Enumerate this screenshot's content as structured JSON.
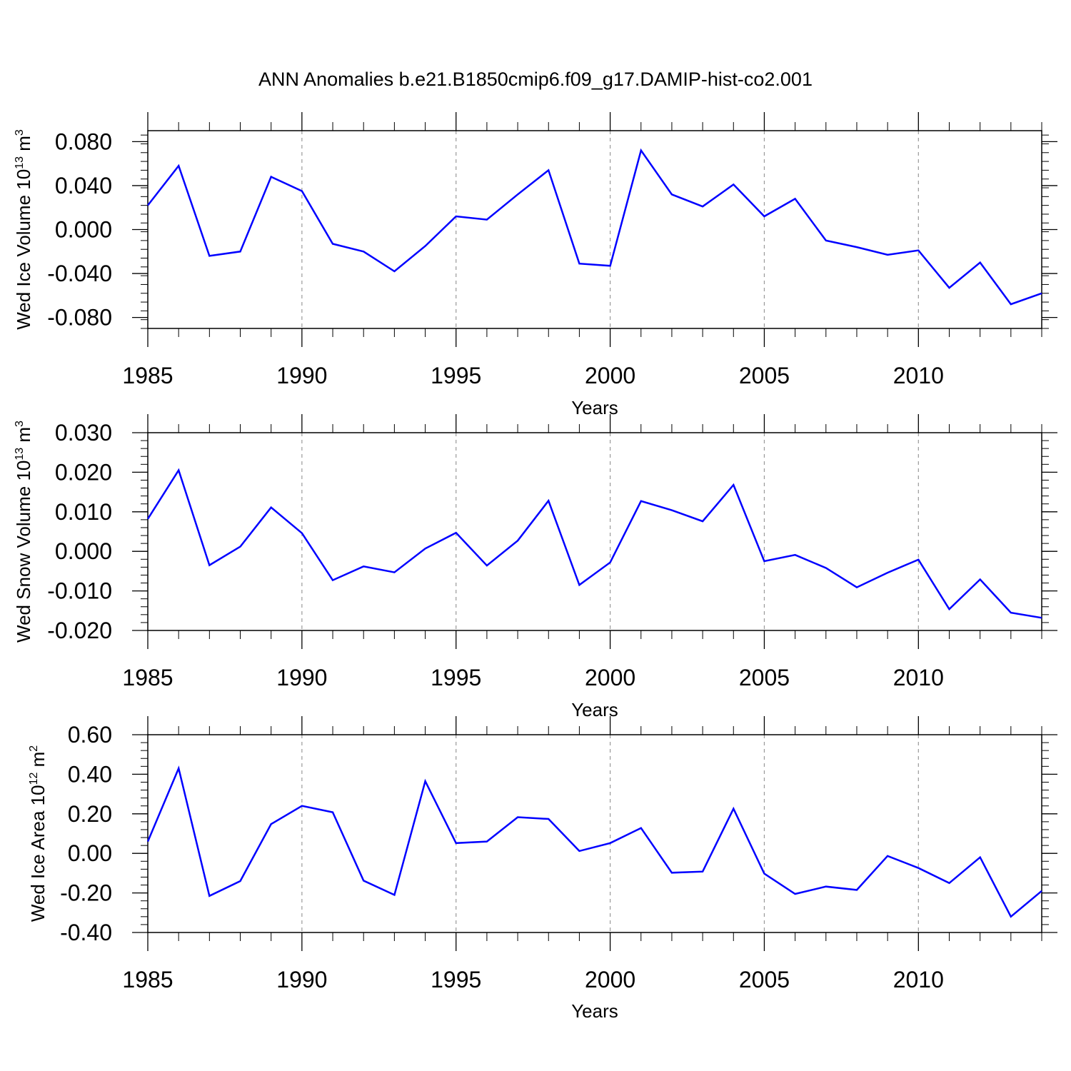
{
  "title": "ANN Anomalies b.e21.B1850cmip6.f09_g17.DAMIP-hist-co2.001",
  "chart_data": [
    {
      "type": "line",
      "ylabel": {
        "pre": "Wed Ice Volume 10",
        "exp": "13",
        "mid": " m",
        "exp2": "3"
      },
      "xlabel": "Years",
      "xlim": [
        1985,
        2014
      ],
      "ylim": [
        -0.09,
        0.09
      ],
      "yticks": [
        -0.08,
        -0.04,
        0.0,
        0.04,
        0.08
      ],
      "yticklabels": [
        "-0.080",
        "-0.040",
        "0.000",
        "0.040",
        "0.080"
      ],
      "xticks": [
        1985,
        1990,
        1995,
        2000,
        2005,
        2010
      ],
      "xticklabels": [
        "1985",
        "1990",
        "1995",
        "2000",
        "2005",
        "2010"
      ],
      "color": "#0000ff",
      "x": [
        1985,
        1986,
        1987,
        1988,
        1989,
        1990,
        1991,
        1992,
        1993,
        1994,
        1995,
        1996,
        1997,
        1998,
        1999,
        2000,
        2001,
        2002,
        2003,
        2004,
        2005,
        2006,
        2007,
        2008,
        2009,
        2010,
        2011,
        2012,
        2013,
        2014
      ],
      "y": [
        0.022,
        0.058,
        -0.024,
        -0.02,
        0.048,
        0.035,
        -0.013,
        -0.02,
        -0.038,
        -0.015,
        0.012,
        0.009,
        0.032,
        0.054,
        -0.031,
        -0.033,
        0.072,
        0.032,
        0.021,
        0.041,
        0.012,
        0.028,
        -0.01,
        -0.016,
        -0.023,
        -0.019,
        -0.053,
        -0.03,
        -0.068,
        -0.058
      ]
    },
    {
      "type": "line",
      "ylabel": {
        "pre": "Wed Snow Volume 10",
        "exp": "13",
        "mid": " m",
        "exp2": "3"
      },
      "xlabel": "Years",
      "xlim": [
        1985,
        2014
      ],
      "ylim": [
        -0.02,
        0.03
      ],
      "yticks": [
        -0.02,
        -0.01,
        0.0,
        0.01,
        0.02,
        0.03
      ],
      "yticklabels": [
        "-0.020",
        "-0.010",
        "0.000",
        "0.010",
        "0.020",
        "0.030"
      ],
      "xticks": [
        1985,
        1990,
        1995,
        2000,
        2005,
        2010
      ],
      "xticklabels": [
        "1985",
        "1990",
        "1995",
        "2000",
        "2005",
        "2010"
      ],
      "color": "#0000ff",
      "x": [
        1985,
        1986,
        1987,
        1988,
        1989,
        1990,
        1991,
        1992,
        1993,
        1994,
        1995,
        1996,
        1997,
        1998,
        1999,
        2000,
        2001,
        2002,
        2003,
        2004,
        2005,
        2006,
        2007,
        2008,
        2009,
        2010,
        2011,
        2012,
        2013,
        2014
      ],
      "y": [
        0.0082,
        0.0205,
        -0.0035,
        0.0012,
        0.0111,
        0.0046,
        -0.0073,
        -0.0038,
        -0.0053,
        0.0007,
        0.0047,
        -0.0036,
        0.0027,
        0.0128,
        -0.0085,
        -0.0028,
        0.0127,
        0.0104,
        0.0076,
        0.0168,
        -0.0025,
        -0.0009,
        -0.0042,
        -0.0091,
        -0.0054,
        -0.0021,
        -0.0146,
        -0.0071,
        -0.0155,
        -0.0168
      ]
    },
    {
      "type": "line",
      "ylabel": {
        "pre": "Wed Ice Area 10",
        "exp": "12",
        "mid": " m",
        "exp2": "2"
      },
      "xlabel": "Years",
      "xlim": [
        1985,
        2014
      ],
      "ylim": [
        -0.4,
        0.6
      ],
      "yticks": [
        -0.4,
        -0.2,
        0.0,
        0.2,
        0.4,
        0.6
      ],
      "yticklabels": [
        "-0.40",
        "-0.20",
        "0.00",
        "0.20",
        "0.40",
        "0.60"
      ],
      "xticks": [
        1985,
        1990,
        1995,
        2000,
        2005,
        2010
      ],
      "xticklabels": [
        "1985",
        "1990",
        "1995",
        "2000",
        "2005",
        "2010"
      ],
      "color": "#0000ff",
      "x": [
        1985,
        1986,
        1987,
        1988,
        1989,
        1990,
        1991,
        1992,
        1993,
        1994,
        1995,
        1996,
        1997,
        1998,
        1999,
        2000,
        2001,
        2002,
        2003,
        2004,
        2005,
        2006,
        2007,
        2008,
        2009,
        2010,
        2011,
        2012,
        2013,
        2014
      ],
      "y": [
        0.06,
        0.43,
        -0.215,
        -0.14,
        0.148,
        0.24,
        0.208,
        -0.138,
        -0.21,
        0.365,
        0.052,
        0.06,
        0.183,
        0.174,
        0.012,
        0.052,
        0.128,
        -0.098,
        -0.092,
        0.226,
        -0.102,
        -0.205,
        -0.168,
        -0.185,
        -0.013,
        -0.074,
        -0.15,
        -0.02,
        -0.32,
        -0.19
      ]
    }
  ]
}
